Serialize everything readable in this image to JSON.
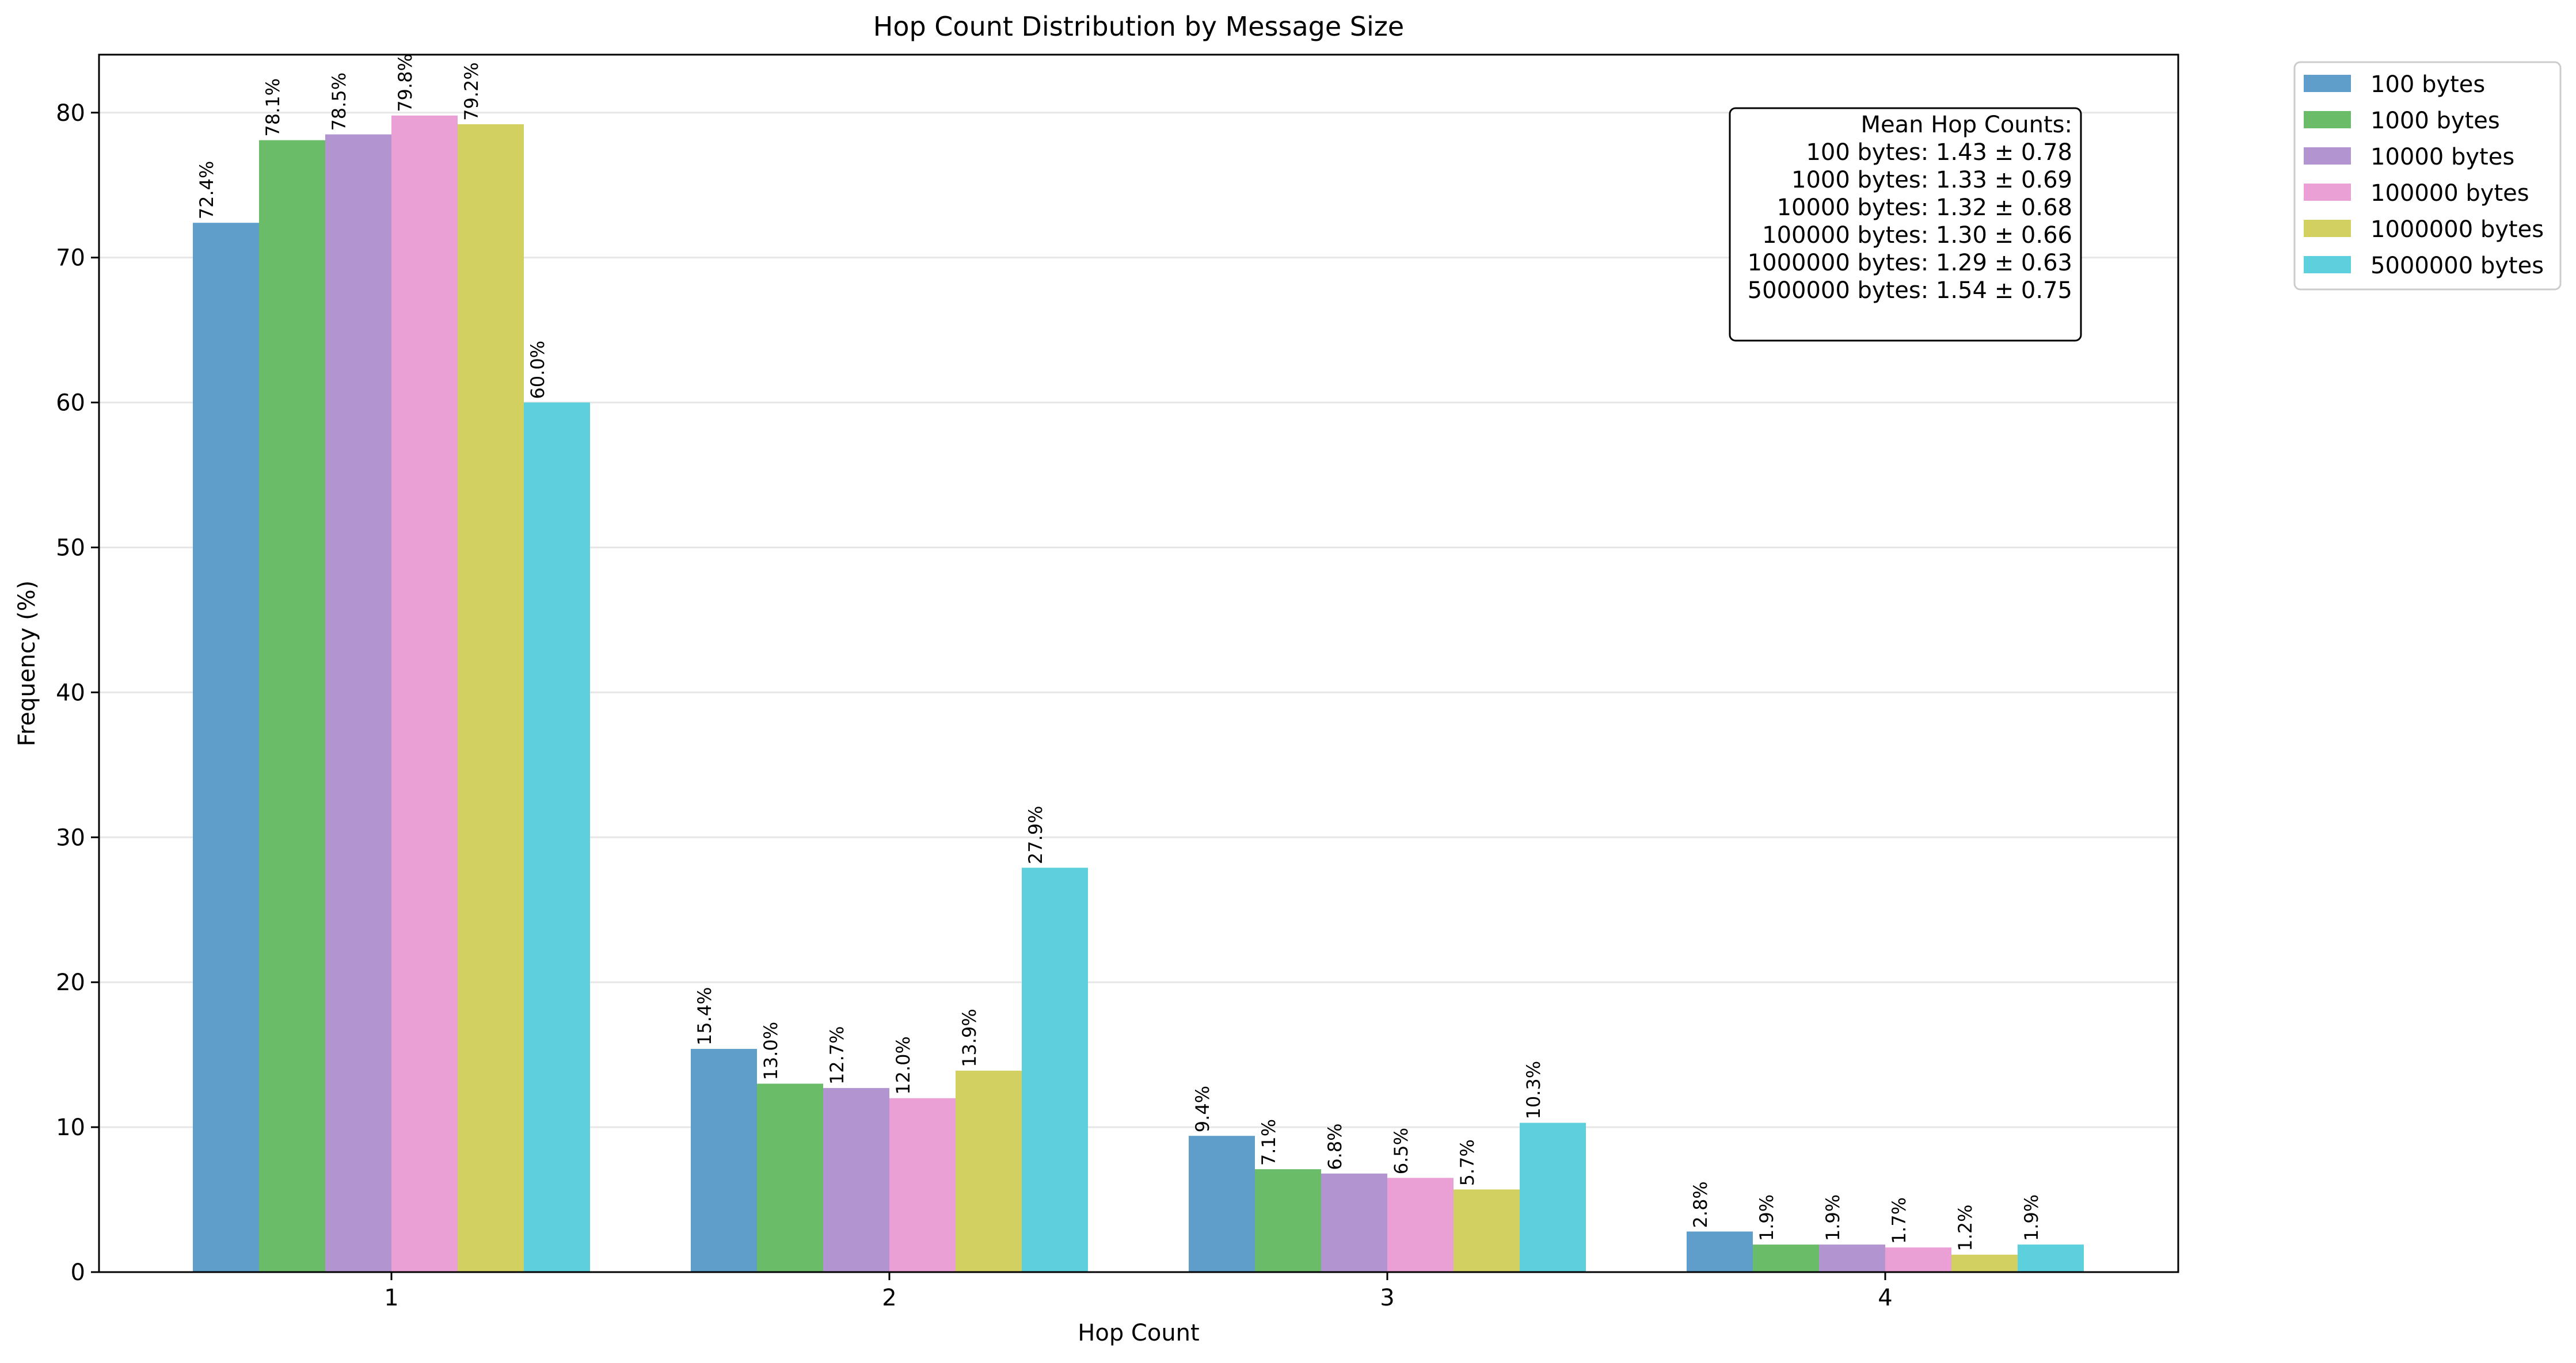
{
  "chart_data": {
    "type": "bar",
    "title": "Hop Count Distribution by Message Size",
    "xlabel": "Hop Count",
    "ylabel": "Frequency (%)",
    "categories": [
      "1",
      "2",
      "3",
      "4"
    ],
    "ylim": [
      0,
      84
    ],
    "yticks": [
      "0",
      "10",
      "20",
      "30",
      "40",
      "50",
      "60",
      "70",
      "80"
    ],
    "grid": "horizontal",
    "legend_placement": "outside-top-right",
    "series": [
      {
        "name": "100 bytes",
        "color": "#5f9dcb",
        "values": [
          72.4,
          15.4,
          9.4,
          2.8
        ],
        "labels": [
          "72.4%",
          "15.4%",
          "9.4%",
          "2.8%"
        ]
      },
      {
        "name": "1000 bytes",
        "color": "#6bbc69",
        "values": [
          78.1,
          13.0,
          7.1,
          1.9
        ],
        "labels": [
          "78.1%",
          "13.0%",
          "7.1%",
          "1.9%"
        ]
      },
      {
        "name": "10000 bytes",
        "color": "#b294d0",
        "values": [
          78.5,
          12.7,
          6.8,
          1.9
        ],
        "labels": [
          "78.5%",
          "12.7%",
          "6.8%",
          "1.9%"
        ]
      },
      {
        "name": "100000 bytes",
        "color": "#eba0d5",
        "values": [
          79.8,
          12.0,
          6.5,
          1.7
        ],
        "labels": [
          "79.8%",
          "12.0%",
          "6.5%",
          "1.7%"
        ]
      },
      {
        "name": "1000000 bytes",
        "color": "#d1d061",
        "values": [
          79.2,
          13.9,
          5.7,
          1.2
        ],
        "labels": [
          "79.2%",
          "13.9%",
          "5.7%",
          "1.2%"
        ]
      },
      {
        "name": "5000000 bytes",
        "color": "#5dd0dd",
        "values": [
          60.0,
          27.9,
          10.3,
          1.9
        ],
        "labels": [
          "60.0%",
          "27.9%",
          "10.3%",
          "1.9%"
        ]
      }
    ],
    "annotation": {
      "lines": [
        "Mean Hop Counts:",
        "100 bytes: 1.43 ± 0.78",
        "1000 bytes: 1.33 ± 0.69",
        "10000 bytes: 1.32 ± 0.68",
        "100000 bytes: 1.30 ± 0.66",
        "1000000 bytes: 1.29 ± 0.63",
        "5000000 bytes: 1.54 ± 0.75"
      ]
    }
  }
}
